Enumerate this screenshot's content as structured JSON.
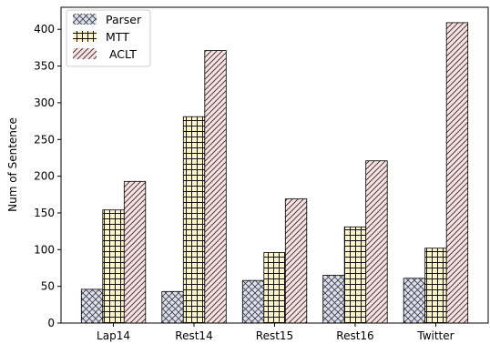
{
  "chart_data": {
    "type": "bar",
    "title": "",
    "xlabel": "",
    "ylabel": "Num of Sentence",
    "categories": [
      "Lap14",
      "Rest14",
      "Rest15",
      "Rest16",
      "Twitter"
    ],
    "series": [
      {
        "name": "Parser",
        "values": [
          46,
          43,
          58,
          65,
          61
        ],
        "fill": "#dde0f0",
        "hatch": "cross-diagonal"
      },
      {
        "name": "MTT",
        "values": [
          154,
          281,
          96,
          131,
          102
        ],
        "fill": "#fff6cc",
        "hatch": "grid"
      },
      {
        "name": "ACLT",
        "values": [
          193,
          371,
          169,
          221,
          409
        ],
        "fill": "#fbe1e1",
        "hatch": "diagonal"
      }
    ],
    "ylim": [
      0,
      430
    ],
    "yticks": [
      0,
      50,
      100,
      150,
      200,
      250,
      300,
      350,
      400
    ],
    "grid": false,
    "legend": "top-left",
    "legend_labels": [
      "Parser",
      "MTT",
      " ACLT"
    ]
  }
}
